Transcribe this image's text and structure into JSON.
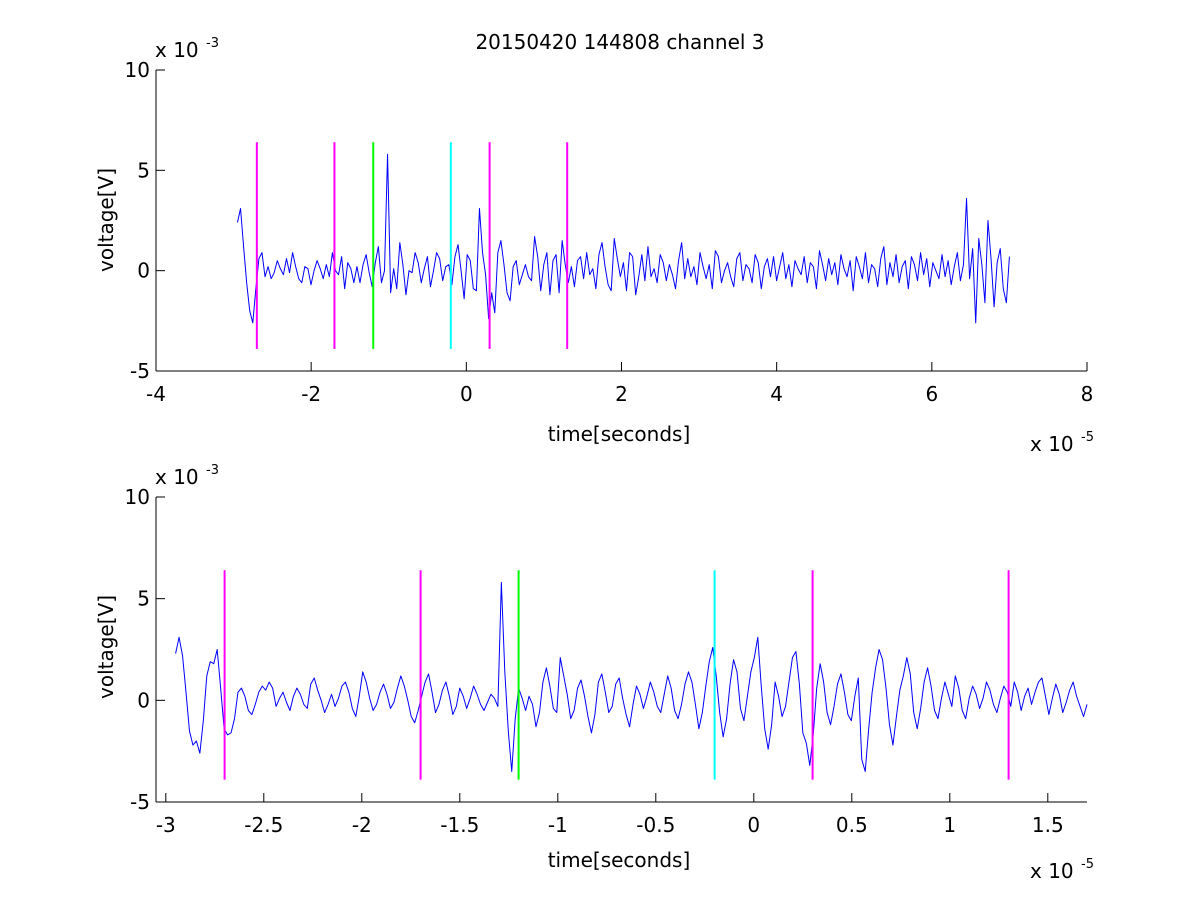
{
  "figure_title": "20150420 144808 channel 3",
  "chart_data": [
    {
      "id": "top",
      "type": "line",
      "title": "20150420 144808 channel 3",
      "xlabel": "time[seconds]",
      "ylabel": "voltage[V]",
      "x_exponent_label": "x 10",
      "x_exponent_power": "-5",
      "y_exponent_label": "x 10",
      "y_exponent_power": "-3",
      "xlim": [
        -4,
        8
      ],
      "ylim": [
        -5,
        10
      ],
      "x_ticks": [
        -4,
        -2,
        0,
        2,
        4,
        6,
        8
      ],
      "x_tick_labels": [
        "-4",
        "-2",
        "0",
        "2",
        "4",
        "6",
        "8"
      ],
      "y_ticks": [
        -5,
        0,
        5,
        10
      ],
      "y_tick_labels": [
        "-5",
        "0",
        "5",
        "10"
      ],
      "grid": false,
      "series": [
        {
          "color": "#0000ff",
          "x_start": -2.95,
          "x_end": 7.0,
          "values": [
            2.4,
            3.1,
            1.2,
            -0.6,
            -2.0,
            -2.6,
            -0.9,
            0.6,
            0.9,
            -0.3,
            0.2,
            -0.4,
            -0.1,
            0.5,
            0.1,
            -0.2,
            0.6,
            -0.1,
            0.9,
            0.2,
            -0.4,
            -0.6,
            0.2,
            0.1,
            -0.7,
            0.0,
            0.5,
            0.1,
            -0.4,
            0.3,
            -0.3,
            0.9,
            0.0,
            -0.2,
            0.7,
            -0.9,
            0.4,
            0.1,
            -0.6,
            0.2,
            -0.6,
            0.3,
            0.8,
            -0.1,
            -0.8,
            0.4,
            1.2,
            -0.6,
            0.0,
            5.8,
            -1.1,
            0.1,
            -0.9,
            1.4,
            0.3,
            -1.2,
            0.0,
            -0.1,
            0.9,
            0.4,
            -0.6,
            0.1,
            0.7,
            -0.8,
            0.0,
            0.9,
            0.6,
            -0.5,
            0.2,
            0.3,
            -0.7,
            0.7,
            1.3,
            0.0,
            -1.4,
            0.8,
            0.5,
            -0.9,
            -1.0,
            3.1,
            0.9,
            -0.2,
            -2.4,
            -1.1,
            -2.1,
            0.9,
            1.5,
            0.3,
            -1.1,
            -1.5,
            0.2,
            0.5,
            -0.7,
            -0.2,
            0.3,
            -0.3,
            -0.5,
            1.7,
            0.7,
            -1.0,
            0.3,
            0.9,
            -1.2,
            0.5,
            0.8,
            -1.1,
            1.5,
            0.3,
            -0.6,
            0.2,
            -0.8,
            0.5,
            0.7,
            -0.4,
            0.9,
            -0.2,
            0.1,
            -0.9,
            0.8,
            1.4,
            0.2,
            -0.7,
            -1.0,
            1.6,
            0.6,
            -0.3,
            0.4,
            -1.0,
            0.9,
            0.7,
            -1.2,
            -0.3,
            0.8,
            -0.5,
            1.2,
            -0.3,
            0.1,
            -0.6,
            0.8,
            0.4,
            -0.5,
            0.3,
            -0.2,
            -0.9,
            0.5,
            1.4,
            -0.4,
            0.6,
            -0.3,
            0.2,
            -0.7,
            0.9,
            0.2,
            -0.4,
            0.3,
            -0.9,
            1.0,
            0.7,
            -0.6,
            0.0,
            0.4,
            -0.3,
            -0.8,
            0.6,
            0.9,
            -0.5,
            0.3,
            0.1,
            -0.6,
            0.8,
            0.4,
            -0.9,
            0.2,
            0.6,
            -0.3,
            0.7,
            -0.5,
            0.2,
            0.9,
            -0.4,
            0.3,
            -0.8,
            0.5,
            0.1,
            -0.2,
            0.7,
            -0.6,
            0.4,
            0.2,
            -0.9,
            1.0,
            0.3,
            -0.5,
            0.6,
            -0.2,
            0.4,
            -0.7,
            0.8,
            0.1,
            -0.3,
            0.5,
            -1.0,
            0.7,
            0.2,
            -0.4,
            0.9,
            -0.6,
            0.3,
            0.1,
            -0.8,
            0.6,
            1.2,
            -0.7,
            0.4,
            -0.3,
            0.8,
            -0.6,
            0.2,
            0.5,
            -0.9,
            0.7,
            0.3,
            -0.5,
            0.9,
            -0.2,
            0.6,
            -0.8,
            0.4,
            0.0,
            -0.4,
            0.8,
            -0.3,
            0.5,
            -0.7,
            0.2,
            0.9,
            -0.5,
            0.3,
            3.6,
            -0.4,
            1.1,
            -2.6,
            1.6,
            0.3,
            -1.6,
            2.5,
            0.6,
            -1.8,
            0.4,
            1.1,
            -0.9,
            -1.6,
            0.7
          ]
        }
      ],
      "vlines": [
        {
          "x": -2.7,
          "color": "#ff00ff"
        },
        {
          "x": -1.7,
          "color": "#ff00ff"
        },
        {
          "x": -1.2,
          "color": "#00ff00"
        },
        {
          "x": -0.2,
          "color": "#00ffff"
        },
        {
          "x": 0.3,
          "color": "#ff00ff"
        },
        {
          "x": 1.3,
          "color": "#ff00ff"
        }
      ],
      "vline_range": [
        -3.9,
        6.4
      ]
    },
    {
      "id": "bottom",
      "type": "line",
      "xlabel": "time[seconds]",
      "ylabel": "voltage[V]",
      "x_exponent_label": "x 10",
      "x_exponent_power": "-5",
      "y_exponent_label": "x 10",
      "y_exponent_power": "-3",
      "xlim": [
        -3.05,
        1.7
      ],
      "ylim": [
        -5,
        10
      ],
      "x_ticks": [
        -3,
        -2.5,
        -2,
        -1.5,
        -1,
        -0.5,
        0,
        0.5,
        1,
        1.5
      ],
      "x_tick_labels": [
        "-3",
        "-2.5",
        "-2",
        "-1.5",
        "-1",
        "-0.5",
        "0",
        "0.5",
        "1",
        "1.5"
      ],
      "y_ticks": [
        -5,
        0,
        5,
        10
      ],
      "y_tick_labels": [
        "-5",
        "0",
        "5",
        "10"
      ],
      "grid": false,
      "series": [
        {
          "color": "#0000ff",
          "x_start": -2.95,
          "x_end": 1.7,
          "values": [
            2.3,
            3.1,
            2.2,
            0.4,
            -1.5,
            -2.2,
            -2.0,
            -2.6,
            -1.0,
            1.2,
            1.9,
            1.8,
            2.5,
            0.6,
            -1.4,
            -1.7,
            -1.6,
            -0.9,
            0.4,
            0.6,
            0.2,
            -0.5,
            -0.7,
            -0.2,
            0.4,
            0.7,
            0.5,
            0.9,
            0.6,
            -0.3,
            0.1,
            0.4,
            -0.1,
            -0.5,
            0.2,
            0.6,
            0.3,
            -0.2,
            -0.4,
            0.8,
            1.1,
            0.5,
            0.0,
            -0.6,
            -0.2,
            0.3,
            -0.3,
            0.1,
            0.7,
            0.9,
            0.4,
            -0.4,
            -0.8,
            0.2,
            1.4,
            0.9,
            0.1,
            -0.5,
            -0.2,
            0.4,
            0.8,
            0.3,
            -0.4,
            -0.1,
            0.6,
            1.2,
            0.7,
            0.0,
            -0.8,
            -1.1,
            -0.5,
            0.2,
            0.9,
            1.3,
            0.4,
            -0.6,
            -0.2,
            0.5,
            0.9,
            0.2,
            -0.7,
            -0.3,
            0.6,
            0.2,
            -0.4,
            0.1,
            0.7,
            0.3,
            -0.2,
            -0.5,
            -0.1,
            0.3,
            0.1,
            -0.3,
            5.8,
            1.4,
            -1.5,
            -3.5,
            -0.9,
            0.6,
            0.1,
            -0.5,
            0.2,
            -0.2,
            -1.3,
            -0.6,
            0.9,
            1.6,
            0.7,
            -0.4,
            -0.6,
            2.1,
            1.2,
            0.3,
            -0.9,
            -0.5,
            0.6,
            1.0,
            0.2,
            -0.8,
            -1.6,
            -0.7,
            0.9,
            1.3,
            0.4,
            -0.6,
            -0.3,
            0.8,
            1.1,
            0.1,
            -0.7,
            -1.3,
            -0.2,
            0.7,
            0.3,
            -0.4,
            0.2,
            0.9,
            0.4,
            -0.3,
            -0.6,
            0.3,
            1.2,
            0.6,
            -0.5,
            -0.9,
            -0.2,
            0.8,
            1.4,
            0.9,
            -0.2,
            -1.4,
            -0.6,
            0.7,
            1.9,
            2.6,
            1.2,
            -0.6,
            -1.8,
            -0.9,
            0.8,
            2.0,
            1.4,
            -0.4,
            -1.0,
            0.2,
            1.4,
            2.1,
            3.1,
            0.7,
            -1.4,
            -2.4,
            -1.2,
            0.9,
            0.2,
            -0.8,
            -0.3,
            0.9,
            2.1,
            2.4,
            0.8,
            -1.6,
            -2.1,
            -3.2,
            -1.7,
            0.6,
            1.8,
            0.9,
            -0.6,
            -1.2,
            -0.3,
            0.8,
            1.3,
            0.4,
            -0.7,
            -1.0,
            0.2,
            1.1,
            -2.9,
            -3.5,
            -1.4,
            0.4,
            1.6,
            2.5,
            2.0,
            0.6,
            -1.2,
            -2.2,
            -0.8,
            0.5,
            1.2,
            2.1,
            1.3,
            -0.6,
            -1.4,
            -0.4,
            0.9,
            1.6,
            0.7,
            -0.5,
            -0.9,
            0.1,
            0.9,
            0.3,
            -0.3,
            1.2,
            0.6,
            -0.5,
            -0.9,
            0.1,
            0.7,
            0.3,
            -0.4,
            0.1,
            0.9,
            0.5,
            -0.2,
            -0.6,
            0.1,
            0.7,
            0.4,
            -0.3,
            0.9,
            0.4,
            -0.5,
            0.2,
            0.6,
            -0.2,
            0.4,
            0.9,
            1.1,
            0.2,
            -0.7,
            0.1,
            0.8,
            0.3,
            -0.6,
            -0.1,
            0.5,
            0.9,
            0.2,
            -0.3,
            -0.8,
            -0.2
          ]
        }
      ],
      "vlines": [
        {
          "x": -2.7,
          "color": "#ff00ff"
        },
        {
          "x": -1.7,
          "color": "#ff00ff"
        },
        {
          "x": -1.2,
          "color": "#00ff00"
        },
        {
          "x": -0.2,
          "color": "#00ffff"
        },
        {
          "x": 0.3,
          "color": "#ff00ff"
        },
        {
          "x": 1.3,
          "color": "#ff00ff"
        }
      ],
      "vline_range": [
        -3.9,
        6.4
      ]
    }
  ]
}
